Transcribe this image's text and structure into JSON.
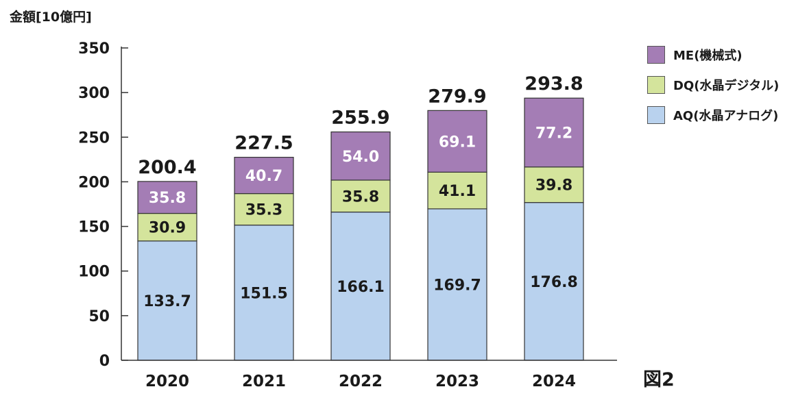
{
  "chart_data": {
    "type": "bar",
    "stacked": true,
    "title": "",
    "ylabel": "金額[10億円]",
    "figure_label": "図2",
    "categories": [
      "2020",
      "2021",
      "2022",
      "2023",
      "2024"
    ],
    "totals": [
      "200.4",
      "227.5",
      "255.9",
      "279.9",
      "293.8"
    ],
    "ylim": [
      0,
      350
    ],
    "yticks": [
      "0",
      "50",
      "100",
      "150",
      "200",
      "250",
      "300",
      "350"
    ],
    "grid": false,
    "legend_position": "top-right",
    "series": [
      {
        "name": "AQ(水晶アナログ)",
        "color": "#b9d2ee",
        "label_color": "#1a1a1a",
        "values": [
          133.7,
          151.5,
          166.1,
          169.7,
          176.8
        ],
        "labels": [
          "133.7",
          "151.5",
          "166.1",
          "169.7",
          "176.8"
        ]
      },
      {
        "name": "DQ(水晶デジタル)",
        "color": "#d4e49c",
        "label_color": "#1a1a1a",
        "values": [
          30.9,
          35.3,
          35.8,
          41.1,
          39.8
        ],
        "labels": [
          "30.9",
          "35.3",
          "35.8",
          "41.1",
          "39.8"
        ]
      },
      {
        "name": "ME(機械式)",
        "color": "#a47db5",
        "label_color": "#ffffff",
        "values": [
          35.8,
          40.7,
          54.0,
          69.1,
          77.2
        ],
        "labels": [
          "35.8",
          "40.7",
          "54.0",
          "69.1",
          "77.2"
        ]
      }
    ]
  }
}
